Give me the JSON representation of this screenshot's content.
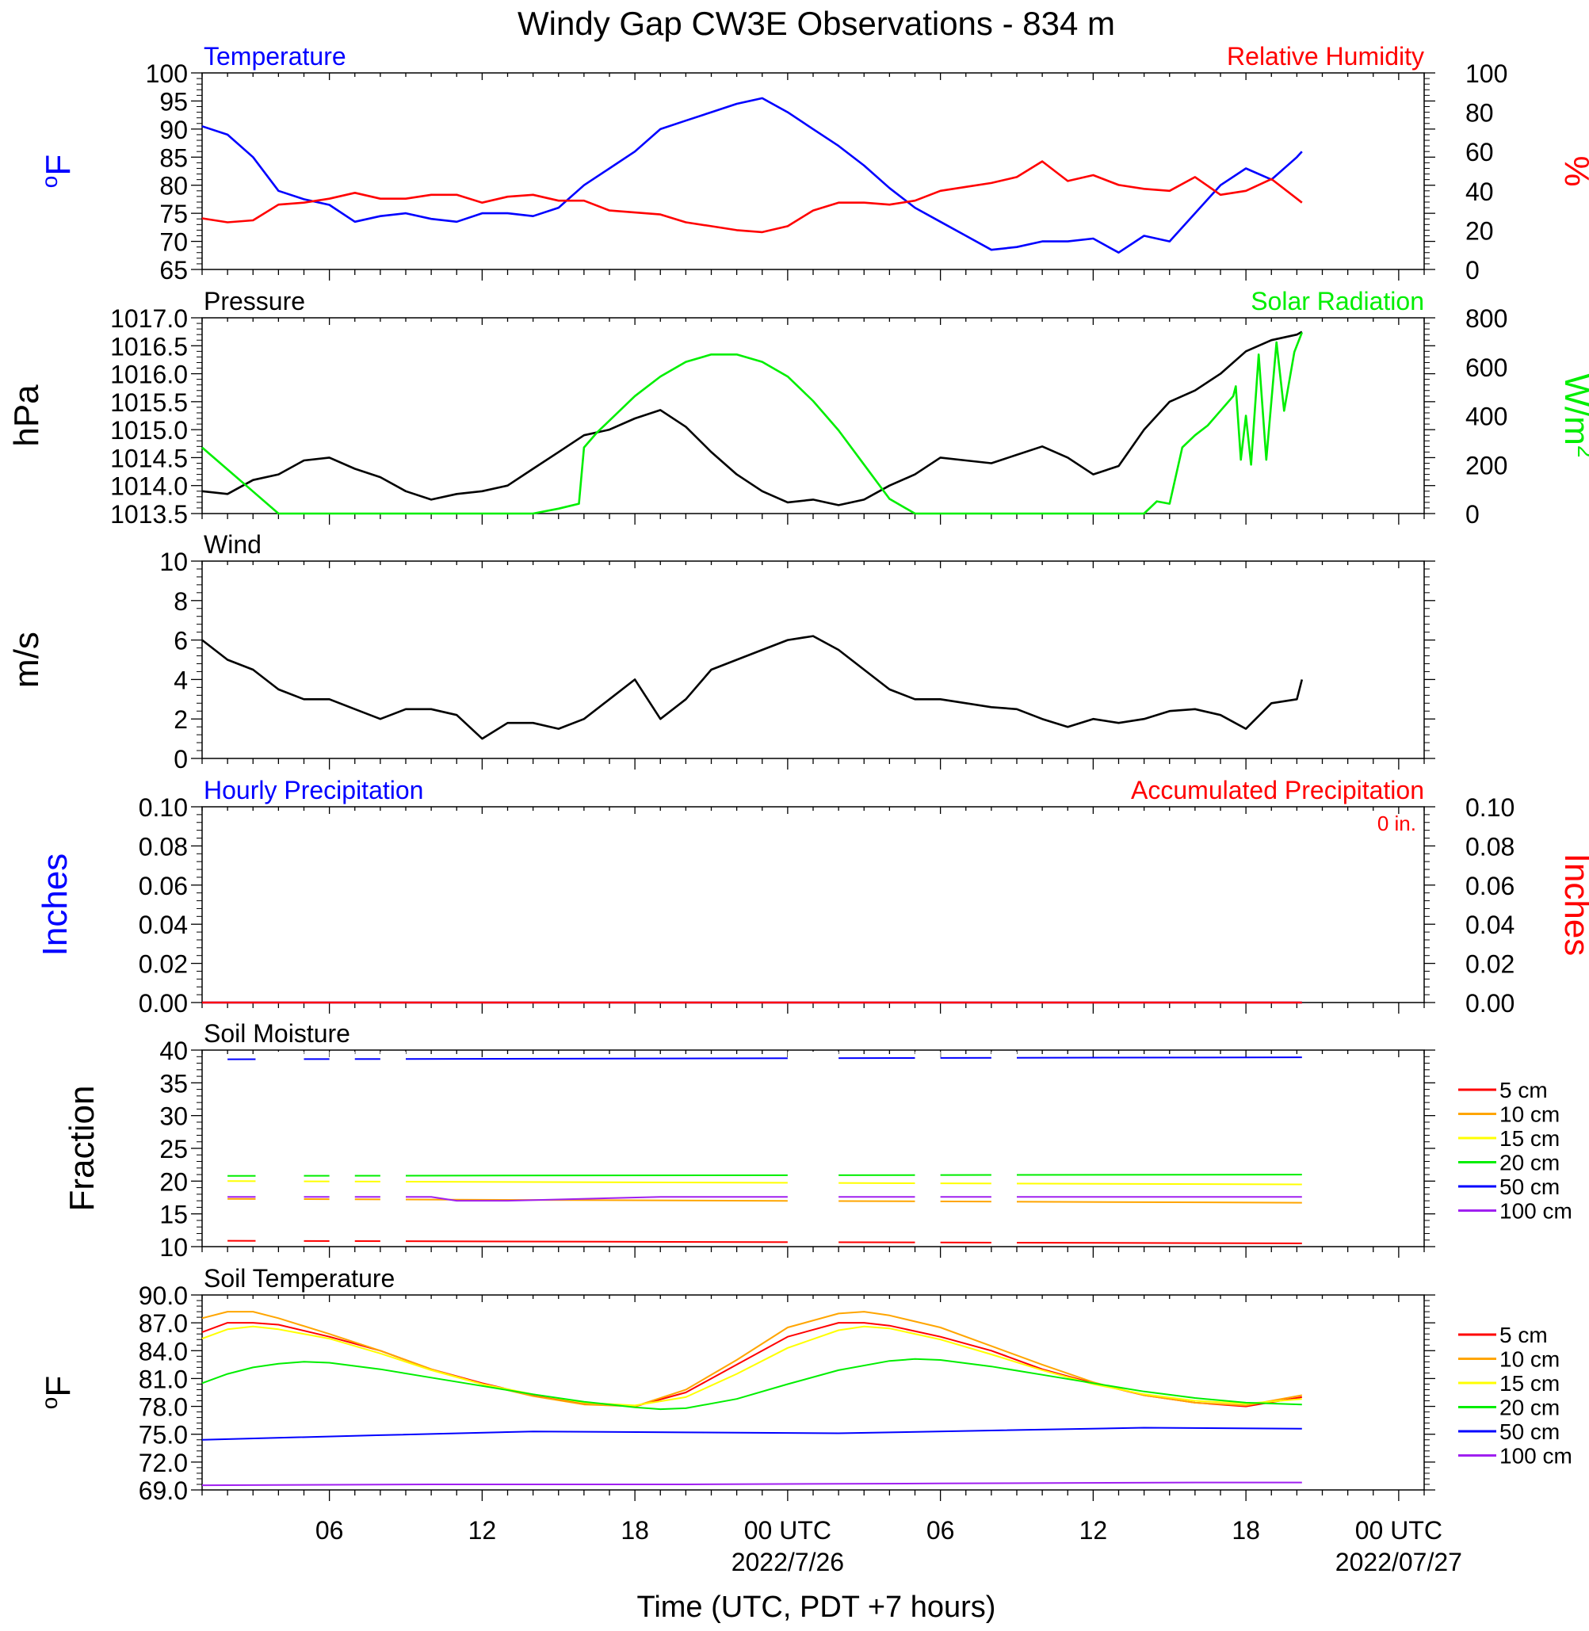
{
  "title": "Windy Gap CW3E Observations - 834 m",
  "xlabel": "Time (UTC, PDT +7 hours)",
  "x_axis": {
    "ticks": [
      {
        "hour": 6,
        "label": "06"
      },
      {
        "hour": 12,
        "label": "12"
      },
      {
        "hour": 18,
        "label": "18"
      },
      {
        "hour": 24,
        "label": "00 UTC",
        "sub": "2022/7/26"
      },
      {
        "hour": 30,
        "label": "06"
      },
      {
        "hour": 36,
        "label": "12"
      },
      {
        "hour": 42,
        "label": "18"
      },
      {
        "hour": 48,
        "label": "00 UTC",
        "sub": "2022/07/27"
      }
    ],
    "range_hours": [
      1,
      49
    ]
  },
  "colors": {
    "blue": "#0000ff",
    "red": "#ff0000",
    "green": "#00ee00",
    "black": "#000000",
    "orange": "#ffa500",
    "yellow": "#ffff00",
    "purple": "#a020f0"
  },
  "chart_data": [
    {
      "type": "line",
      "left_title": "Temperature",
      "right_title": "Relative Humidity",
      "ylabel": "oF",
      "ylabel_right": "%",
      "ylim": [
        65,
        100
      ],
      "yticks": [
        "65",
        "70",
        "75",
        "80",
        "85",
        "90",
        "95",
        "100"
      ],
      "ylim_right": [
        0,
        100
      ],
      "yticks_right": [
        "0",
        "20",
        "40",
        "60",
        "80",
        "100"
      ],
      "series": [
        {
          "name": "Temperature",
          "axis": "left",
          "color": "#0000ff",
          "x": [
            1,
            2,
            3,
            4,
            5,
            6,
            7,
            8,
            9,
            10,
            11,
            12,
            13,
            14,
            15,
            16,
            17,
            18,
            19,
            20,
            21,
            22,
            23,
            24,
            25,
            26,
            27,
            28,
            29,
            30,
            31,
            32,
            33,
            34,
            35,
            36,
            37,
            38,
            39,
            40,
            41,
            42,
            43,
            44,
            44.2
          ],
          "y": [
            90.5,
            89,
            85,
            79,
            77.5,
            76.5,
            73.5,
            74.5,
            75,
            74,
            73.5,
            75,
            75,
            74.5,
            76,
            80,
            83,
            86,
            90,
            91.5,
            93,
            94.5,
            95.5,
            93,
            90,
            87,
            83.5,
            79.5,
            76,
            73.5,
            71,
            68.5,
            69,
            70,
            70,
            70.5,
            68,
            71,
            70,
            75,
            80,
            83,
            81,
            85,
            86
          ]
        },
        {
          "name": "Relative Humidity",
          "axis": "right",
          "color": "#ff0000",
          "x": [
            1,
            2,
            3,
            4,
            5,
            6,
            7,
            8,
            9,
            10,
            11,
            12,
            13,
            14,
            15,
            16,
            17,
            18,
            19,
            20,
            21,
            22,
            23,
            24,
            25,
            26,
            27,
            28,
            29,
            30,
            31,
            32,
            33,
            34,
            35,
            36,
            37,
            38,
            39,
            40,
            41,
            42,
            43,
            44,
            44.2
          ],
          "y": [
            26,
            24,
            25,
            33,
            34,
            36,
            39,
            36,
            36,
            38,
            38,
            34,
            37,
            38,
            35,
            35,
            30,
            29,
            28,
            24,
            22,
            20,
            19,
            22,
            30,
            34,
            34,
            33,
            35,
            40,
            42,
            44,
            47,
            55,
            45,
            48,
            43,
            41,
            40,
            47,
            38,
            40,
            46,
            36,
            34
          ]
        }
      ]
    },
    {
      "type": "line",
      "left_title": "Pressure",
      "right_title": "Solar Radiation",
      "ylabel": "hPa",
      "ylabel_right": "W/m",
      "ylim": [
        1013.5,
        1017.0
      ],
      "yticks": [
        "1013.5",
        "1014.0",
        "1014.5",
        "1015.0",
        "1015.5",
        "1016.0",
        "1016.5",
        "1017.0"
      ],
      "ylim_right": [
        0,
        800
      ],
      "yticks_right": [
        "0",
        "200",
        "400",
        "600",
        "800"
      ],
      "series": [
        {
          "name": "Pressure",
          "axis": "left",
          "color": "#000000",
          "x": [
            1,
            2,
            3,
            4,
            5,
            6,
            7,
            8,
            9,
            10,
            11,
            12,
            13,
            14,
            15,
            16,
            17,
            18,
            19,
            20,
            21,
            22,
            23,
            24,
            25,
            26,
            27,
            28,
            29,
            30,
            31,
            32,
            33,
            34,
            35,
            36,
            37,
            38,
            39,
            40,
            41,
            42,
            43,
            44,
            44.2
          ],
          "y": [
            1013.9,
            1013.85,
            1014.1,
            1014.2,
            1014.45,
            1014.5,
            1014.3,
            1014.15,
            1013.9,
            1013.75,
            1013.85,
            1013.9,
            1014.0,
            1014.3,
            1014.6,
            1014.9,
            1015.0,
            1015.2,
            1015.35,
            1015.05,
            1014.6,
            1014.2,
            1013.9,
            1013.7,
            1013.75,
            1013.65,
            1013.75,
            1014.0,
            1014.2,
            1014.5,
            1014.45,
            1014.4,
            1014.55,
            1014.7,
            1014.5,
            1014.2,
            1014.35,
            1015.0,
            1015.5,
            1015.7,
            1016.0,
            1016.4,
            1016.6,
            1016.7,
            1016.75
          ]
        },
        {
          "name": "Solar Radiation",
          "axis": "right",
          "color": "#00ee00",
          "x": [
            1,
            2,
            3,
            4,
            5,
            10,
            13,
            14,
            15,
            15.8,
            16,
            16.5,
            17,
            18,
            19,
            20,
            21,
            22,
            23,
            24,
            25,
            26,
            27,
            28,
            29,
            30,
            35,
            37,
            38,
            38.5,
            39,
            39.5,
            40,
            40.5,
            41,
            41.5,
            41.6,
            41.8,
            42,
            42.2,
            42.5,
            42.8,
            43.2,
            43.5,
            43.9,
            44.2
          ],
          "y": [
            270,
            180,
            90,
            0,
            0,
            0,
            0,
            0,
            20,
            40,
            270,
            330,
            380,
            480,
            560,
            620,
            650,
            650,
            620,
            560,
            460,
            340,
            200,
            60,
            0,
            0,
            0,
            0,
            0,
            50,
            40,
            270,
            320,
            360,
            420,
            480,
            520,
            220,
            400,
            200,
            650,
            220,
            700,
            420,
            660,
            740
          ]
        }
      ]
    },
    {
      "type": "line",
      "left_title": "Wind",
      "ylabel": "m/s",
      "ylim": [
        0,
        10
      ],
      "yticks": [
        "0",
        "2",
        "4",
        "6",
        "8",
        "10"
      ],
      "series": [
        {
          "name": "Wind",
          "axis": "left",
          "color": "#000000",
          "x": [
            1,
            2,
            3,
            4,
            5,
            6,
            7,
            8,
            9,
            10,
            11,
            12,
            13,
            14,
            15,
            16,
            17,
            18,
            19,
            20,
            21,
            22,
            23,
            24,
            25,
            26,
            27,
            28,
            29,
            30,
            31,
            32,
            33,
            34,
            35,
            36,
            37,
            38,
            39,
            40,
            41,
            42,
            43,
            44,
            44.2
          ],
          "y": [
            6,
            5,
            4.5,
            3.5,
            3,
            3,
            2.5,
            2,
            2.5,
            2.5,
            2.2,
            1,
            1.8,
            1.8,
            1.5,
            2,
            3,
            4,
            2,
            3,
            4.5,
            5,
            5.5,
            6,
            6.2,
            5.5,
            4.5,
            3.5,
            3,
            3,
            2.8,
            2.6,
            2.5,
            2,
            1.6,
            2,
            1.8,
            2,
            2.4,
            2.5,
            2.2,
            1.5,
            2.8,
            3,
            4
          ]
        }
      ]
    },
    {
      "type": "line",
      "left_title": "Hourly Precipitation",
      "right_title": "Accumulated Precipitation",
      "annotation": "0 in.",
      "ylabel": "Inches",
      "ylabel_right": "Inches",
      "ylim": [
        0,
        0.1
      ],
      "yticks": [
        "0.00",
        "0.02",
        "0.04",
        "0.06",
        "0.08",
        "0.10"
      ],
      "ylim_right": [
        0,
        0.1
      ],
      "yticks_right": [
        "0.00",
        "0.02",
        "0.04",
        "0.06",
        "0.08",
        "0.10"
      ],
      "series": [
        {
          "name": "Hourly Precipitation",
          "axis": "left",
          "color": "#0000ff",
          "x": [
            1,
            44.2
          ],
          "y": [
            0,
            0
          ]
        },
        {
          "name": "Accumulated Precipitation",
          "axis": "right",
          "color": "#ff0000",
          "x": [
            1,
            44.2
          ],
          "y": [
            0,
            0
          ]
        }
      ]
    },
    {
      "type": "line",
      "left_title": "Soil Moisture",
      "ylabel": "Fraction",
      "ylim": [
        10,
        40
      ],
      "yticks": [
        "10",
        "15",
        "20",
        "25",
        "30",
        "35",
        "40"
      ],
      "legend": [
        "5 cm",
        "10 cm",
        "15 cm",
        "20 cm",
        "50 cm",
        "100 cm"
      ],
      "series": [
        {
          "name": "5 cm",
          "color": "#ff0000",
          "x": [
            2,
            44.2
          ],
          "y": [
            10.9,
            10.5
          ]
        },
        {
          "name": "10 cm",
          "color": "#ffa500",
          "x": [
            2,
            44.2
          ],
          "y": [
            17.3,
            16.7
          ]
        },
        {
          "name": "15 cm",
          "color": "#ffff00",
          "x": [
            2,
            44.2
          ],
          "y": [
            20.0,
            19.5
          ]
        },
        {
          "name": "20 cm",
          "color": "#00ee00",
          "x": [
            2,
            44.2
          ],
          "y": [
            20.8,
            21.0
          ]
        },
        {
          "name": "50 cm",
          "color": "#0000ff",
          "x": [
            2,
            44.2
          ],
          "y": [
            38.6,
            38.9
          ]
        },
        {
          "name": "100 cm",
          "color": "#a020f0",
          "x": [
            2,
            10,
            11,
            13,
            19,
            44.2
          ],
          "y": [
            17.6,
            17.6,
            17.0,
            17.0,
            17.6,
            17.6
          ]
        }
      ],
      "gaps": [
        [
          3.1,
          5
        ],
        [
          6,
          7
        ],
        [
          8,
          9
        ],
        [
          24,
          26
        ],
        [
          29,
          30
        ],
        [
          32,
          33
        ]
      ]
    },
    {
      "type": "line",
      "left_title": "Soil Temperature",
      "ylabel": "oF",
      "ylim": [
        69,
        90
      ],
      "yticks": [
        "69.0",
        "72.0",
        "75.0",
        "78.0",
        "81.0",
        "84.0",
        "87.0",
        "90.0"
      ],
      "legend": [
        "5 cm",
        "10 cm",
        "15 cm",
        "20 cm",
        "50 cm",
        "100 cm"
      ],
      "series": [
        {
          "name": "5 cm",
          "color": "#ff0000",
          "x": [
            1,
            2,
            3,
            4,
            6,
            8,
            10,
            12,
            14,
            16,
            18,
            20,
            22,
            24,
            26,
            27,
            28,
            30,
            32,
            34,
            36,
            38,
            40,
            42,
            44.2
          ],
          "y": [
            86,
            87,
            87,
            86.8,
            85.5,
            84,
            82,
            80.5,
            79.2,
            78.3,
            78,
            79.5,
            82.5,
            85.5,
            87,
            87,
            86.7,
            85.5,
            84,
            82,
            80.5,
            79.2,
            78.4,
            78,
            79
          ]
        },
        {
          "name": "10 cm",
          "color": "#ffa500",
          "x": [
            1,
            2,
            3,
            4,
            6,
            8,
            10,
            12,
            14,
            16,
            18,
            20,
            22,
            24,
            26,
            27,
            28,
            30,
            32,
            34,
            36,
            38,
            40,
            42,
            44.2
          ],
          "y": [
            87.5,
            88.2,
            88.2,
            87.5,
            85.8,
            84,
            82,
            80.4,
            79.1,
            78.2,
            78,
            79.8,
            83,
            86.5,
            88,
            88.2,
            87.8,
            86.5,
            84.5,
            82.5,
            80.6,
            79.2,
            78.4,
            78.1,
            79.2
          ]
        },
        {
          "name": "15 cm",
          "color": "#ffff00",
          "x": [
            1,
            2,
            3,
            4,
            6,
            8,
            10,
            12,
            14,
            16,
            18,
            20,
            22,
            24,
            26,
            27,
            28,
            30,
            32,
            34,
            36,
            38,
            40,
            42,
            44.2
          ],
          "y": [
            85.3,
            86.3,
            86.6,
            86.3,
            85.3,
            83.7,
            81.9,
            80.4,
            79.3,
            78.4,
            78.1,
            79,
            81.5,
            84.3,
            86.2,
            86.6,
            86.4,
            85.2,
            83.6,
            81.9,
            80.4,
            79.3,
            78.6,
            78.3,
            78.8
          ]
        },
        {
          "name": "20 cm",
          "color": "#00ee00",
          "x": [
            1,
            2,
            3,
            4,
            5,
            6,
            8,
            10,
            12,
            14,
            16,
            18,
            19,
            20,
            22,
            24,
            26,
            28,
            29,
            30,
            32,
            34,
            36,
            38,
            40,
            42,
            44.2
          ],
          "y": [
            80.5,
            81.5,
            82.2,
            82.6,
            82.8,
            82.7,
            82,
            81.1,
            80.2,
            79.3,
            78.5,
            77.9,
            77.7,
            77.8,
            78.8,
            80.4,
            81.9,
            82.9,
            83.1,
            83,
            82.3,
            81.4,
            80.5,
            79.6,
            78.9,
            78.4,
            78.2
          ]
        },
        {
          "name": "50 cm",
          "color": "#0000ff",
          "x": [
            1,
            8,
            14,
            20,
            26,
            32,
            38,
            44.2
          ],
          "y": [
            74.4,
            74.9,
            75.3,
            75.2,
            75.1,
            75.4,
            75.7,
            75.6
          ]
        },
        {
          "name": "100 cm",
          "color": "#a020f0",
          "x": [
            1,
            10,
            20,
            30,
            40,
            44.2
          ],
          "y": [
            69.5,
            69.6,
            69.6,
            69.7,
            69.8,
            69.8
          ]
        }
      ]
    }
  ]
}
